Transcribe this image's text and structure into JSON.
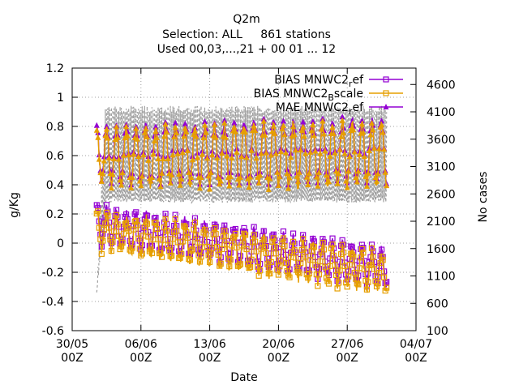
{
  "chart_data": {
    "type": "line",
    "title_lines": [
      "Q2m",
      "Selection: ALL     861 stations",
      "Used 00,03,...,21 + 00 01 ... 12"
    ],
    "xlabel": "Date",
    "ylabel": "g/Kg",
    "y2label": "No cases",
    "xlim": [
      "2020-05-30",
      "2020-07-04"
    ],
    "ylim": [
      -0.6,
      1.2
    ],
    "y2lim": [
      100,
      4900
    ],
    "x_ticks": [
      {
        "date": "2020-05-30",
        "label1": "30/05",
        "label2": "00Z"
      },
      {
        "date": "2020-06-06",
        "label1": "06/06",
        "label2": "00Z"
      },
      {
        "date": "2020-06-13",
        "label1": "13/06",
        "label2": "00Z"
      },
      {
        "date": "2020-06-20",
        "label1": "20/06",
        "label2": "00Z"
      },
      {
        "date": "2020-06-27",
        "label1": "27/06",
        "label2": "00Z"
      },
      {
        "date": "2020-07-04",
        "label1": "04/07",
        "label2": "00Z"
      }
    ],
    "y_ticks": [
      -0.6,
      -0.4,
      -0.2,
      0,
      0.2,
      0.4,
      0.6,
      0.8,
      1,
      1.2
    ],
    "y_tick_labels": [
      "-0.6",
      "-0.4",
      "-0.2",
      "0",
      "0.2",
      "0.4",
      "0.6",
      "0.8",
      "1",
      "1.2"
    ],
    "y2_ticks": [
      100,
      600,
      1100,
      1600,
      2100,
      2600,
      3100,
      3600,
      4100,
      4600
    ],
    "grid": true,
    "legend_position": "top-right",
    "series": [
      {
        "name": "BIAS MNWC2_ref",
        "legend_label": "BIAS MNWC2_ref",
        "metric": "BIAS",
        "color": "#9400d3",
        "marker": "square",
        "axis": "y"
      },
      {
        "name": "BIAS MNWC2_Bscale",
        "legend_label": "BIAS MNWC2_Bscale",
        "metric": "BIAS",
        "color": "#e69f00",
        "marker": "square",
        "axis": "y"
      },
      {
        "name": "MAE MNWC2_ref",
        "legend_label": "MAE MNWC2_ref",
        "metric": "MAE",
        "color": "#9400d3",
        "marker": "triangle",
        "axis": "y"
      },
      {
        "name": "MAE MNWC2_Bscale",
        "legend_label": "",
        "metric": "MAE",
        "color": "#e69f00",
        "marker": "triangle",
        "axis": "y"
      },
      {
        "name": "No cases",
        "legend_label": "",
        "metric": "count",
        "color": "#a0a0a0",
        "marker": "none",
        "dashed": true,
        "axis": "y2"
      }
    ],
    "time_range": {
      "start": "2020-06-01T12:00",
      "end": "2020-07-01T00:00",
      "step_hours": 1
    },
    "no_cases_curve": {
      "high": 4150,
      "low": 2500,
      "first_start": 800
    },
    "bias_curve": {
      "start_daily_mean": 0.1,
      "end_daily_mean": -0.2,
      "daily_amplitude": 0.12
    },
    "mae_curve": {
      "low_daily": 0.42,
      "peak_daily_start": 0.8,
      "peak_daily_end": 0.85
    }
  }
}
